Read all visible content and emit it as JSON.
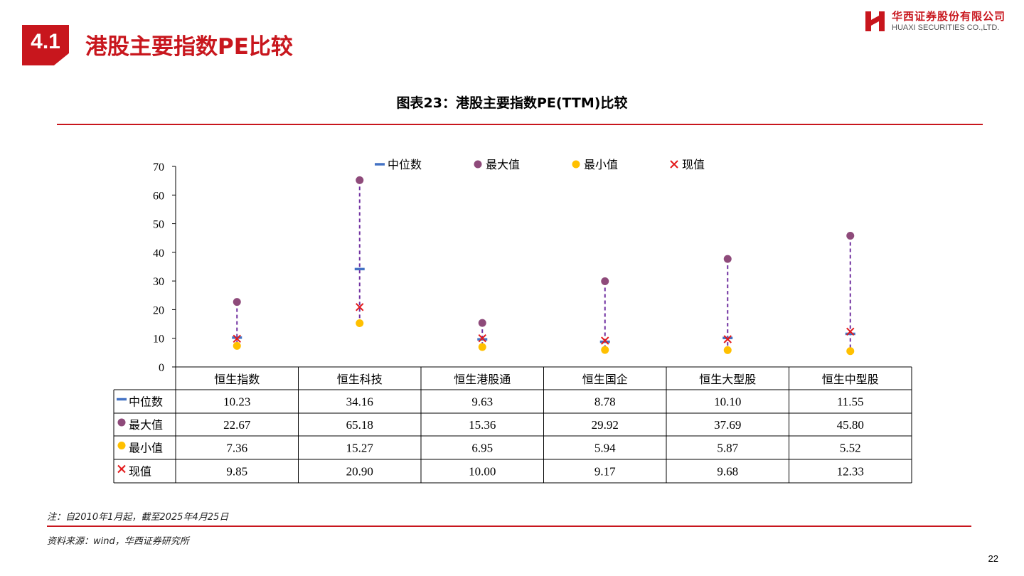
{
  "header": {
    "section_number": "4.1",
    "title": "港股主要指数PE比较",
    "logo_cn": "华西证券股份有限公司",
    "logo_en": "HUAXI SECURITIES CO.,LTD."
  },
  "chart_title": "图表23：港股主要指数PE(TTM)比较",
  "colors": {
    "accent": "#c8161d",
    "median": "#4472c4",
    "max": "#8e4a7a",
    "min": "#ffc000",
    "current": "#e31a1c",
    "range_line": "#7030a0"
  },
  "chart_data": {
    "type": "scatter",
    "categories": [
      "恒生指数",
      "恒生科技",
      "恒生港股通",
      "恒生国企",
      "恒生大型股",
      "恒生中型股"
    ],
    "series": [
      {
        "name": "中位数",
        "marker": "dash",
        "values": [
          10.23,
          34.16,
          9.63,
          8.78,
          10.1,
          11.55
        ],
        "labels": [
          "10.23",
          "34.16",
          "9.63",
          "8.78",
          "10.10",
          "11.55"
        ]
      },
      {
        "name": "最大值",
        "marker": "circle",
        "values": [
          22.67,
          65.18,
          15.36,
          29.92,
          37.69,
          45.8
        ],
        "labels": [
          "22.67",
          "65.18",
          "15.36",
          "29.92",
          "37.69",
          "45.80"
        ]
      },
      {
        "name": "最小值",
        "marker": "circle",
        "values": [
          7.36,
          15.27,
          6.95,
          5.94,
          5.87,
          5.52
        ],
        "labels": [
          "7.36",
          "15.27",
          "6.95",
          "5.94",
          "5.87",
          "5.52"
        ]
      },
      {
        "name": "现值",
        "marker": "cross",
        "values": [
          9.85,
          20.9,
          10.0,
          9.17,
          9.68,
          12.33
        ],
        "labels": [
          "9.85",
          "20.90",
          "10.00",
          "9.17",
          "9.68",
          "12.33"
        ]
      }
    ],
    "yticks": [
      "0",
      "10",
      "20",
      "30",
      "40",
      "50",
      "60",
      "70"
    ],
    "ylim": [
      0,
      70
    ],
    "legend_position": "top",
    "data_table": true,
    "grid": false
  },
  "footer": {
    "note": "注：自2010年1月起，截至2025年4月25日",
    "source": "资料来源：wind，华西证券研究所",
    "page_number": "22"
  }
}
